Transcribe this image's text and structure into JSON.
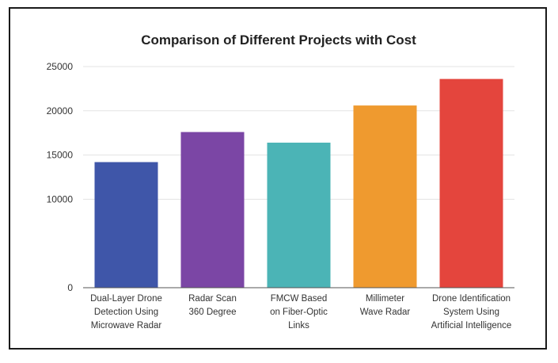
{
  "chart_data": {
    "type": "bar",
    "title": "Comparison of Different Projects with Cost",
    "xlabel": "",
    "ylabel": "",
    "ylim": [
      0,
      25000
    ],
    "yticks": [
      "0",
      "10000",
      "15000",
      "20000",
      "25000"
    ],
    "grid": true,
    "legend": "none",
    "categories": [
      "Dual-Layer Drone Detection Using Microwave Radar",
      "Radar Scan 360 Degree",
      "FMCW Based on Fiber-Optic Links",
      "Millimeter Wave Radar",
      "Drone Identification System Using Artificial Intelligence"
    ],
    "category_lines": [
      [
        "Dual-Layer Drone",
        "Detection Using",
        "Microwave Radar"
      ],
      [
        "Radar Scan",
        "360 Degree"
      ],
      [
        "FMCW Based",
        "on Fiber-Optic",
        "Links"
      ],
      [
        "Millimeter",
        "Wave Radar"
      ],
      [
        "Drone Identification",
        "System Using",
        "Artificial Intelligence"
      ]
    ],
    "values": [
      14200,
      17600,
      16400,
      20600,
      23600
    ],
    "colors": [
      "#3f56a9",
      "#7b46a5",
      "#4bb4b6",
      "#ef9a2f",
      "#e4453d"
    ]
  }
}
